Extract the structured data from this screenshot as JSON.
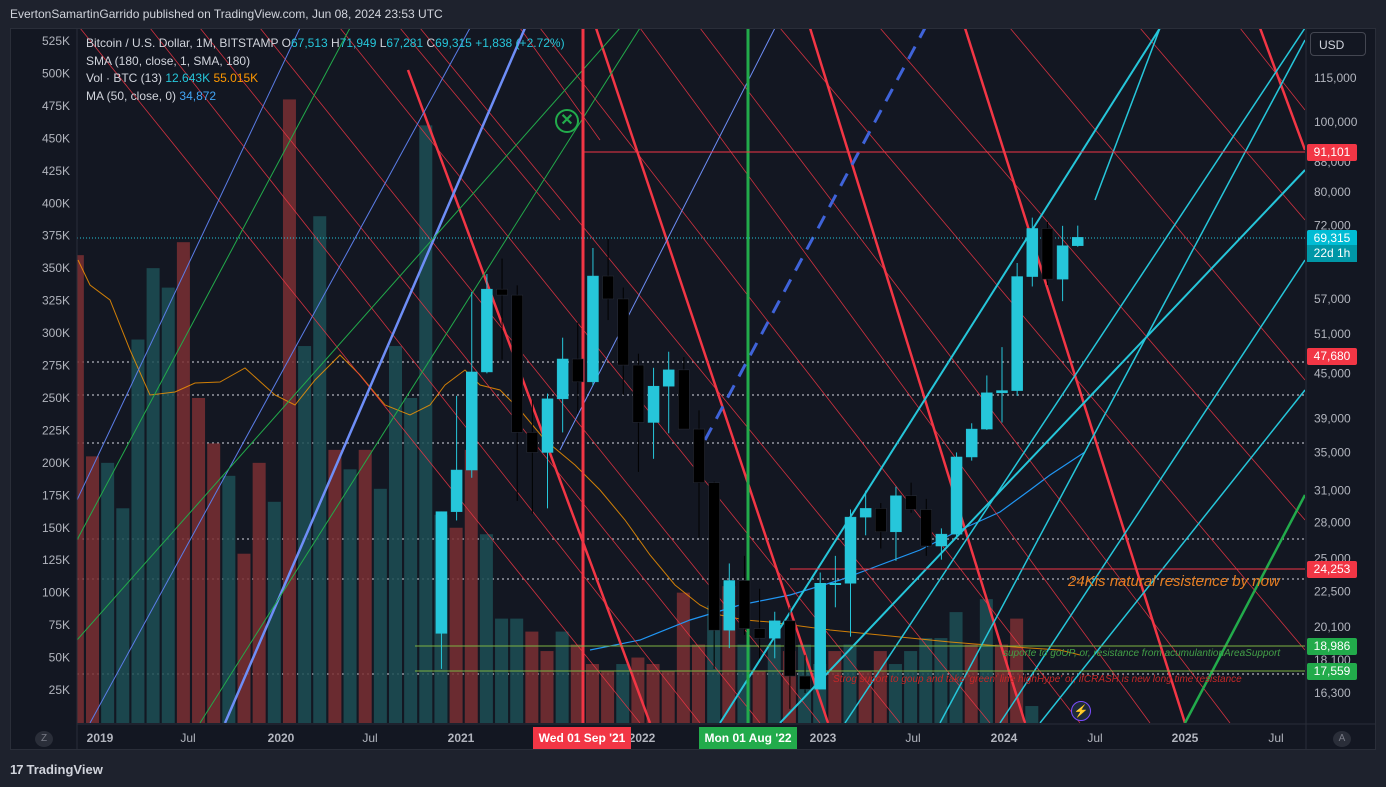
{
  "header": {
    "publisher_line": "EvertonSamartinGarrido published on TradingView.com, Jun 08, 2024 23:53 UTC"
  },
  "legend": {
    "symbol": "Bitcoin / U.S. Dollar, 1M, BITSTAMP",
    "open_label": "O",
    "open": "67,513",
    "high_label": "H",
    "high": "71,949",
    "low_label": "L",
    "low": "67,281",
    "close_label": "C",
    "close": "69,315",
    "change": "+1,838 (+2.72%)",
    "sma_label": "SMA (180, close, 1, SMA, 180)",
    "vol_label": "Vol · BTC (13)",
    "vol_value": "12.643K",
    "vol_ma": "55.015K",
    "ma_label": "MA (50, close, 0)",
    "ma_value": "34,872"
  },
  "currency_button": "USD",
  "price_tags": {
    "t91101": "91,101",
    "t69315": "69,315",
    "t22d": "22d 1h",
    "t47680": "47,680",
    "t24253": "24,253",
    "t18986": "18,986",
    "t17559": "17,559"
  },
  "date_tags": {
    "sep21": "Wed 01 Sep '21",
    "aug22": "Mon 01 Aug '22"
  },
  "annotations": {
    "resistance": "24Kis natural resistence by now",
    "suporte": "suporte to goUP, or, resistance from acumulantionAreaSupport",
    "strong": "Strog suport to goup and take 'green' line highHype' or, ifCRASH is new long time resistance"
  },
  "zoom_buttons": {
    "left": "Z",
    "right": "A"
  },
  "footer": {
    "logo": "17",
    "brand": "TradingView"
  },
  "icons": {
    "bolt": "lightning-icon",
    "xmark": "circle-x-icon"
  },
  "colors": {
    "background": "#131722",
    "up": "#26c6da",
    "down": "#000000",
    "red_line": "#f23645",
    "green_line": "#22ab4b",
    "blue_line": "#42a5f5",
    "sma": "#ff9800"
  },
  "chart_data": {
    "type": "candlestick",
    "title": "Bitcoin / U.S. Dollar, 1M, BITSTAMP",
    "right_axis_ticks": [
      "115,000",
      "100,000",
      "88,000",
      "80,000",
      "72,000",
      "57,000",
      "51,000",
      "45,000",
      "39,000",
      "35,000",
      "31,000",
      "28,000",
      "25,000",
      "22,500",
      "20,100",
      "18,100",
      "16,300"
    ],
    "left_axis_ticks": [
      "525K",
      "500K",
      "475K",
      "450K",
      "425K",
      "400K",
      "375K",
      "350K",
      "325K",
      "300K",
      "275K",
      "250K",
      "225K",
      "200K",
      "175K",
      "150K",
      "125K",
      "100K",
      "75K",
      "50K",
      "25K"
    ],
    "x_axis_ticks": [
      "2019",
      "Jul",
      "2020",
      "Jul",
      "2021",
      "2022",
      "2023",
      "Jul",
      "2024",
      "Jul",
      "2025",
      "Jul"
    ],
    "right_axis_scale": "log",
    "ohlc_visible": [
      {
        "t": "2020-12",
        "o": 19700,
        "h": 29000,
        "l": 17600,
        "c": 29000
      },
      {
        "t": "2021-01",
        "o": 29000,
        "h": 41900,
        "l": 28200,
        "c": 33100
      },
      {
        "t": "2021-02",
        "o": 33100,
        "h": 58300,
        "l": 32300,
        "c": 45200
      },
      {
        "t": "2021-03",
        "o": 45200,
        "h": 61700,
        "l": 45000,
        "c": 58800
      },
      {
        "t": "2021-04",
        "o": 58800,
        "h": 64800,
        "l": 47000,
        "c": 57700
      },
      {
        "t": "2021-05",
        "o": 57700,
        "h": 59500,
        "l": 30000,
        "c": 37300
      },
      {
        "t": "2021-06",
        "o": 37300,
        "h": 41300,
        "l": 28800,
        "c": 35000
      },
      {
        "t": "2021-07",
        "o": 35000,
        "h": 42200,
        "l": 29300,
        "c": 41500
      },
      {
        "t": "2021-08",
        "o": 41500,
        "h": 50400,
        "l": 37300,
        "c": 47100
      },
      {
        "t": "2021-09",
        "o": 47100,
        "h": 52900,
        "l": 39600,
        "c": 43800
      },
      {
        "t": "2021-10",
        "o": 43800,
        "h": 67000,
        "l": 43300,
        "c": 61300
      },
      {
        "t": "2021-11",
        "o": 61300,
        "h": 69000,
        "l": 53300,
        "c": 57000
      },
      {
        "t": "2021-12",
        "o": 57000,
        "h": 59100,
        "l": 42000,
        "c": 46200
      },
      {
        "t": "2022-01",
        "o": 46200,
        "h": 47900,
        "l": 32900,
        "c": 38500
      },
      {
        "t": "2022-02",
        "o": 38500,
        "h": 45800,
        "l": 34300,
        "c": 43200
      },
      {
        "t": "2022-03",
        "o": 43200,
        "h": 48200,
        "l": 37200,
        "c": 45500
      },
      {
        "t": "2022-04",
        "o": 45500,
        "h": 47400,
        "l": 37700,
        "c": 37700
      },
      {
        "t": "2022-05",
        "o": 37700,
        "h": 40000,
        "l": 26700,
        "c": 31800
      },
      {
        "t": "2022-06",
        "o": 31800,
        "h": 31900,
        "l": 17600,
        "c": 19900
      },
      {
        "t": "2022-07",
        "o": 19900,
        "h": 24600,
        "l": 18800,
        "c": 23300
      },
      {
        "t": "2022-08",
        "o": 23300,
        "h": 25200,
        "l": 19600,
        "c": 20000
      },
      {
        "t": "2022-09",
        "o": 20000,
        "h": 22700,
        "l": 18200,
        "c": 19400
      },
      {
        "t": "2022-10",
        "o": 19400,
        "h": 21100,
        "l": 18200,
        "c": 20500
      },
      {
        "t": "2022-11",
        "o": 20500,
        "h": 21400,
        "l": 15500,
        "c": 17200
      },
      {
        "t": "2022-12",
        "o": 17200,
        "h": 18400,
        "l": 16300,
        "c": 16500
      },
      {
        "t": "2023-01",
        "o": 16500,
        "h": 23900,
        "l": 16500,
        "c": 23100
      },
      {
        "t": "2023-02",
        "o": 23100,
        "h": 25200,
        "l": 21400,
        "c": 23100
      },
      {
        "t": "2023-03",
        "o": 23100,
        "h": 29200,
        "l": 19500,
        "c": 28500
      },
      {
        "t": "2023-04",
        "o": 28500,
        "h": 31000,
        "l": 26900,
        "c": 29300
      },
      {
        "t": "2023-05",
        "o": 29300,
        "h": 29800,
        "l": 25800,
        "c": 27200
      },
      {
        "t": "2023-06",
        "o": 27200,
        "h": 31400,
        "l": 24800,
        "c": 30500
      },
      {
        "t": "2023-07",
        "o": 30500,
        "h": 31800,
        "l": 28900,
        "c": 29200
      },
      {
        "t": "2023-08",
        "o": 29200,
        "h": 30200,
        "l": 25200,
        "c": 26000
      },
      {
        "t": "2023-09",
        "o": 26000,
        "h": 27500,
        "l": 24900,
        "c": 27000
      },
      {
        "t": "2023-10",
        "o": 27000,
        "h": 35000,
        "l": 26600,
        "c": 34500
      },
      {
        "t": "2023-11",
        "o": 34500,
        "h": 38400,
        "l": 34100,
        "c": 37700
      },
      {
        "t": "2023-12",
        "o": 37700,
        "h": 44700,
        "l": 37600,
        "c": 42300
      },
      {
        "t": "2024-01",
        "o": 42300,
        "h": 48900,
        "l": 38500,
        "c": 42600
      },
      {
        "t": "2024-02",
        "o": 42600,
        "h": 63900,
        "l": 41900,
        "c": 61200
      },
      {
        "t": "2024-03",
        "o": 61200,
        "h": 73800,
        "l": 59300,
        "c": 71300
      },
      {
        "t": "2024-04",
        "o": 71300,
        "h": 72800,
        "l": 59600,
        "c": 60700
      },
      {
        "t": "2024-05",
        "o": 60700,
        "h": 71900,
        "l": 56600,
        "c": 67500
      },
      {
        "t": "2024-06",
        "o": 67513,
        "h": 71949,
        "l": 67281,
        "c": 69315
      }
    ],
    "volume_bars_K": [
      {
        "t": "2018-12",
        "v": 360,
        "up": false
      },
      {
        "t": "2019-01",
        "v": 205,
        "up": false
      },
      {
        "t": "2019-02",
        "v": 200,
        "up": true
      },
      {
        "t": "2019-03",
        "v": 165,
        "up": true
      },
      {
        "t": "2019-04",
        "v": 295,
        "up": true
      },
      {
        "t": "2019-05",
        "v": 350,
        "up": true
      },
      {
        "t": "2019-06",
        "v": 335,
        "up": true
      },
      {
        "t": "2019-07",
        "v": 370,
        "up": false
      },
      {
        "t": "2019-08",
        "v": 250,
        "up": false
      },
      {
        "t": "2019-09",
        "v": 215,
        "up": false
      },
      {
        "t": "2019-10",
        "v": 190,
        "up": true
      },
      {
        "t": "2019-11",
        "v": 130,
        "up": false
      },
      {
        "t": "2019-12",
        "v": 200,
        "up": false
      },
      {
        "t": "2020-01",
        "v": 170,
        "up": true
      },
      {
        "t": "2020-02",
        "v": 480,
        "up": false
      },
      {
        "t": "2020-03",
        "v": 290,
        "up": true
      },
      {
        "t": "2020-04",
        "v": 390,
        "up": true
      },
      {
        "t": "2020-05",
        "v": 210,
        "up": false
      },
      {
        "t": "2020-06",
        "v": 195,
        "up": true
      },
      {
        "t": "2020-07",
        "v": 210,
        "up": false
      },
      {
        "t": "2020-08",
        "v": 180,
        "up": true
      },
      {
        "t": "2020-09",
        "v": 290,
        "up": true
      },
      {
        "t": "2020-10",
        "v": 250,
        "up": true
      },
      {
        "t": "2020-11",
        "v": 460,
        "up": true
      },
      {
        "t": "2020-12",
        "v": 160,
        "up": true
      },
      {
        "t": "2021-01",
        "v": 150,
        "up": false
      },
      {
        "t": "2021-02",
        "v": 210,
        "up": false
      },
      {
        "t": "2021-03",
        "v": 145,
        "up": true
      },
      {
        "t": "2021-04",
        "v": 80,
        "up": true
      },
      {
        "t": "2021-05",
        "v": 80,
        "up": true
      },
      {
        "t": "2021-06",
        "v": 70,
        "up": false
      },
      {
        "t": "2021-07",
        "v": 55,
        "up": false
      },
      {
        "t": "2021-08",
        "v": 70,
        "up": true
      },
      {
        "t": "2021-09",
        "v": 60,
        "up": false
      },
      {
        "t": "2021-10",
        "v": 45,
        "up": false
      },
      {
        "t": "2021-11",
        "v": 40,
        "up": false
      },
      {
        "t": "2021-12",
        "v": 45,
        "up": true
      },
      {
        "t": "2022-01",
        "v": 50,
        "up": false
      },
      {
        "t": "2022-02",
        "v": 45,
        "up": false
      },
      {
        "t": "2022-03",
        "v": 40,
        "up": false
      },
      {
        "t": "2022-04",
        "v": 100,
        "up": false
      },
      {
        "t": "2022-05",
        "v": 60,
        "up": false
      },
      {
        "t": "2022-06",
        "v": 90,
        "up": true
      },
      {
        "t": "2022-07",
        "v": 105,
        "up": false
      },
      {
        "t": "2022-08",
        "v": 60,
        "up": true
      },
      {
        "t": "2022-09",
        "v": 40,
        "up": false
      },
      {
        "t": "2022-10",
        "v": 60,
        "up": true
      },
      {
        "t": "2022-11",
        "v": 55,
        "up": false
      },
      {
        "t": "2022-12",
        "v": 60,
        "up": true
      },
      {
        "t": "2023-01",
        "v": 45,
        "up": true
      },
      {
        "t": "2023-02",
        "v": 55,
        "up": false
      },
      {
        "t": "2023-03",
        "v": 60,
        "up": true
      },
      {
        "t": "2023-04",
        "v": 40,
        "up": false
      },
      {
        "t": "2023-05",
        "v": 55,
        "up": false
      },
      {
        "t": "2023-06",
        "v": 45,
        "up": true
      },
      {
        "t": "2023-07",
        "v": 55,
        "up": true
      },
      {
        "t": "2023-08",
        "v": 65,
        "up": true
      },
      {
        "t": "2023-09",
        "v": 65,
        "up": true
      },
      {
        "t": "2023-10",
        "v": 85,
        "up": true
      },
      {
        "t": "2023-11",
        "v": 60,
        "up": false
      },
      {
        "t": "2023-12",
        "v": 95,
        "up": true
      },
      {
        "t": "2024-01",
        "v": 60,
        "up": false
      },
      {
        "t": "2024-02",
        "v": 80,
        "up": false
      },
      {
        "t": "2024-03",
        "v": 12.643,
        "up": true
      }
    ]
  }
}
